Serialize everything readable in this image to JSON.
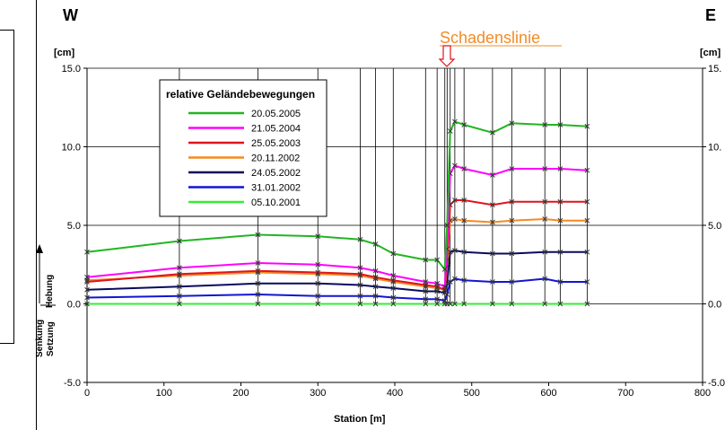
{
  "chart_data": {
    "type": "line",
    "corner_labels": {
      "left": "W",
      "right": "E"
    },
    "unit_label_left": "[cm]",
    "unit_label_right": "[cm]",
    "annotation": {
      "text": "Schadenslinie",
      "x": 467,
      "color": "#f28c28"
    },
    "xlabel": "Station [m]",
    "xlim": [
      0,
      800
    ],
    "ylim": [
      -5,
      15
    ],
    "x_ticks": [
      "0",
      "100",
      "200",
      "300",
      "400",
      "500",
      "600",
      "700",
      "800"
    ],
    "y_ticks": [
      "15.0",
      "10.0",
      "5.0",
      "0.0",
      "-5.0"
    ],
    "y_ticks_right": [
      "15.",
      "10.",
      "5.0",
      "0.0",
      "-5.0"
    ],
    "side_labels": {
      "up": "Hebung",
      "up2": "Senkung",
      "down": "Setzung"
    },
    "legend": {
      "title": "relative Geländebewegungen"
    },
    "survey_stations": [
      0,
      120,
      222,
      300,
      355,
      375,
      398,
      440,
      455,
      465,
      468,
      472,
      478,
      490,
      527,
      552,
      595,
      615,
      650
    ],
    "x": [
      0,
      120,
      222,
      300,
      355,
      375,
      398,
      440,
      455,
      465,
      468,
      472,
      478,
      490,
      527,
      552,
      595,
      615,
      650
    ],
    "series": [
      {
        "name": "20.05.2005",
        "color": "#22b522",
        "values": [
          3.3,
          4.0,
          4.4,
          4.3,
          4.1,
          3.8,
          3.2,
          2.8,
          2.8,
          2.2,
          5.0,
          11.0,
          11.6,
          11.4,
          10.9,
          11.5,
          11.4,
          11.4,
          11.3
        ]
      },
      {
        "name": "21.05.2004",
        "color": "#ff00ff",
        "values": [
          1.7,
          2.3,
          2.6,
          2.5,
          2.3,
          2.1,
          1.8,
          1.4,
          1.3,
          1.1,
          3.5,
          8.3,
          8.8,
          8.6,
          8.2,
          8.6,
          8.6,
          8.6,
          8.5
        ]
      },
      {
        "name": "25.05.2003",
        "color": "#e0141e",
        "values": [
          1.4,
          1.9,
          2.1,
          2.0,
          1.9,
          1.7,
          1.5,
          1.2,
          1.1,
          0.9,
          2.8,
          6.3,
          6.6,
          6.6,
          6.3,
          6.5,
          6.5,
          6.5,
          6.5
        ]
      },
      {
        "name": "20.11.2002",
        "color": "#f58b1e",
        "values": [
          1.5,
          1.8,
          2.0,
          1.9,
          1.8,
          1.6,
          1.4,
          1.1,
          1.0,
          0.9,
          2.4,
          5.3,
          5.4,
          5.3,
          5.2,
          5.3,
          5.4,
          5.3,
          5.3
        ]
      },
      {
        "name": "24.05.2002",
        "color": "#0a0a5e",
        "values": [
          0.9,
          1.1,
          1.3,
          1.3,
          1.2,
          1.1,
          1.0,
          0.8,
          0.8,
          0.7,
          1.3,
          3.3,
          3.4,
          3.3,
          3.2,
          3.2,
          3.3,
          3.3,
          3.3
        ]
      },
      {
        "name": "31.01.2002",
        "color": "#1414d2",
        "values": [
          0.4,
          0.5,
          0.6,
          0.5,
          0.5,
          0.5,
          0.4,
          0.3,
          0.3,
          0.2,
          0.6,
          1.4,
          1.6,
          1.5,
          1.4,
          1.4,
          1.6,
          1.4,
          1.4
        ]
      },
      {
        "name": "05.10.2001",
        "color": "#33ee33",
        "values": [
          0,
          0,
          0,
          0,
          0,
          0,
          0,
          0,
          0,
          0,
          0,
          0,
          0,
          0,
          0,
          0,
          0,
          0,
          0
        ]
      }
    ]
  }
}
